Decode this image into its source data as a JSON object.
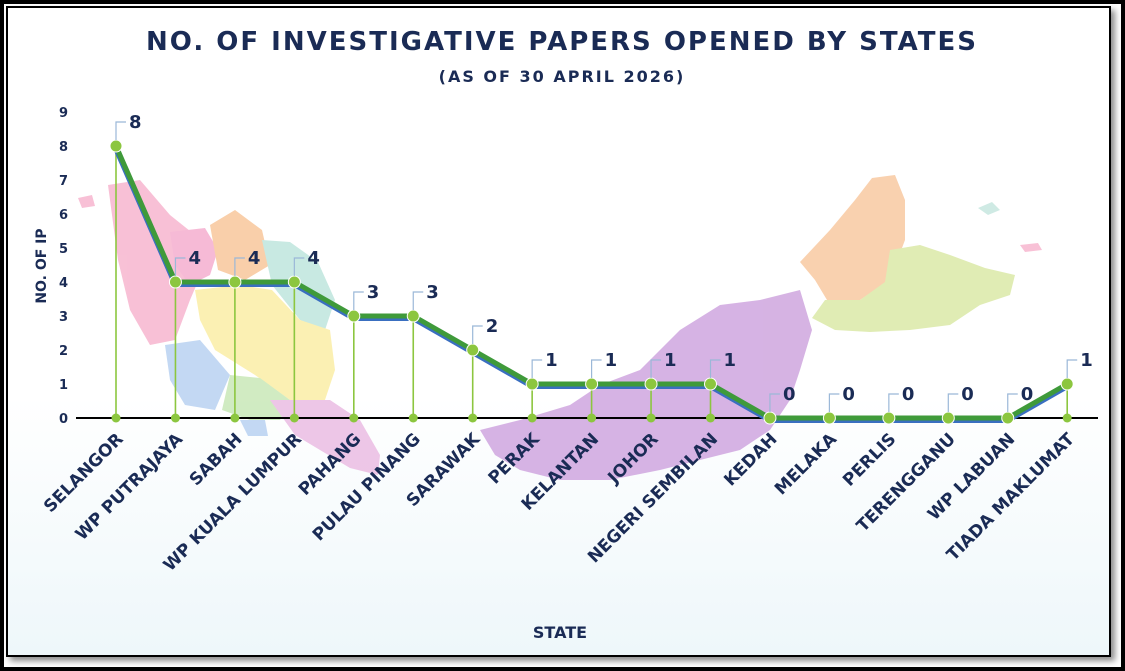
{
  "chart_data": {
    "type": "line",
    "title": "NO. OF INVESTIGATIVE PAPERS OPENED BY STATES",
    "subtitle": "(AS OF 30 APRIL 2026)",
    "xlabel": "STATE",
    "ylabel": "NO. OF IP",
    "ylim": [
      0,
      9
    ],
    "yticks": [
      "0",
      "1",
      "2",
      "3",
      "4",
      "5",
      "6",
      "7",
      "8",
      "9"
    ],
    "grid": false,
    "categories": [
      "SELANGOR",
      "WP PUTRAJAYA",
      "SABAH",
      "WP KUALA LUMPUR",
      "PAHANG",
      "PULAU PINANG",
      "SARAWAK",
      "PERAK",
      "KELANTAN",
      "JOHOR",
      "NEGERI SEMBILAN",
      "KEDAH",
      "MELAKA",
      "PERLIS",
      "TERENGGANU",
      "WP LABUAN",
      "TIADA MAKLUMAT"
    ],
    "series": [
      {
        "values": [
          8,
          4,
          4,
          4,
          3,
          3,
          2,
          1,
          1,
          1,
          1,
          0,
          0,
          0,
          0,
          0,
          1
        ]
      }
    ],
    "colors": {
      "line": "#3f9a3a",
      "line_under": "#3a6fc0",
      "marker": "#8cc63f",
      "text": "#1a2b55",
      "map_background": true
    }
  }
}
